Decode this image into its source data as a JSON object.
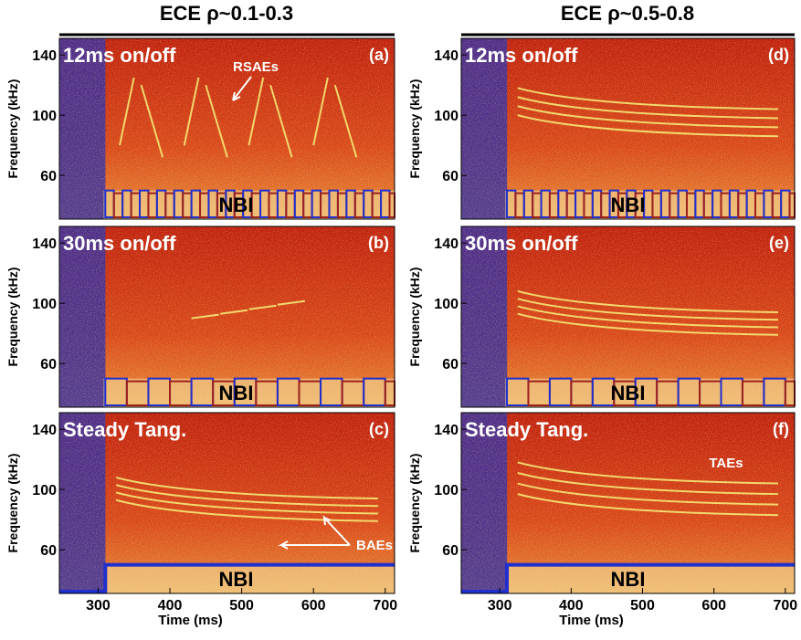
{
  "columns": [
    {
      "title": "ECE ρ~0.1-0.3"
    },
    {
      "title": "ECE ρ~0.5-0.8"
    }
  ],
  "x_axis": {
    "label": "Time (ms)",
    "range": [
      246,
      713
    ],
    "ticks": [
      300,
      400,
      500,
      600,
      700
    ]
  },
  "y_axis": {
    "label": "Frequency (kHz)",
    "range": [
      31,
      151
    ],
    "ticks": [
      60,
      100,
      140
    ]
  },
  "panels": [
    {
      "title": "12ms on/off",
      "tag": "(a)",
      "nbi": "NBI",
      "annotation": "RSAEs"
    },
    {
      "title": "12ms on/off",
      "tag": "(d)",
      "nbi": "NBI"
    },
    {
      "title": "30ms on/off",
      "tag": "(b)",
      "nbi": "NBI"
    },
    {
      "title": "30ms on/off",
      "tag": "(e)",
      "nbi": "NBI"
    },
    {
      "title": "Steady Tang.",
      "tag": "(c)",
      "nbi": "NBI",
      "annotation": "BAEs"
    },
    {
      "title": "Steady Tang.",
      "tag": "(f)",
      "nbi": "NBI",
      "annotation": "TAEs"
    }
  ]
}
